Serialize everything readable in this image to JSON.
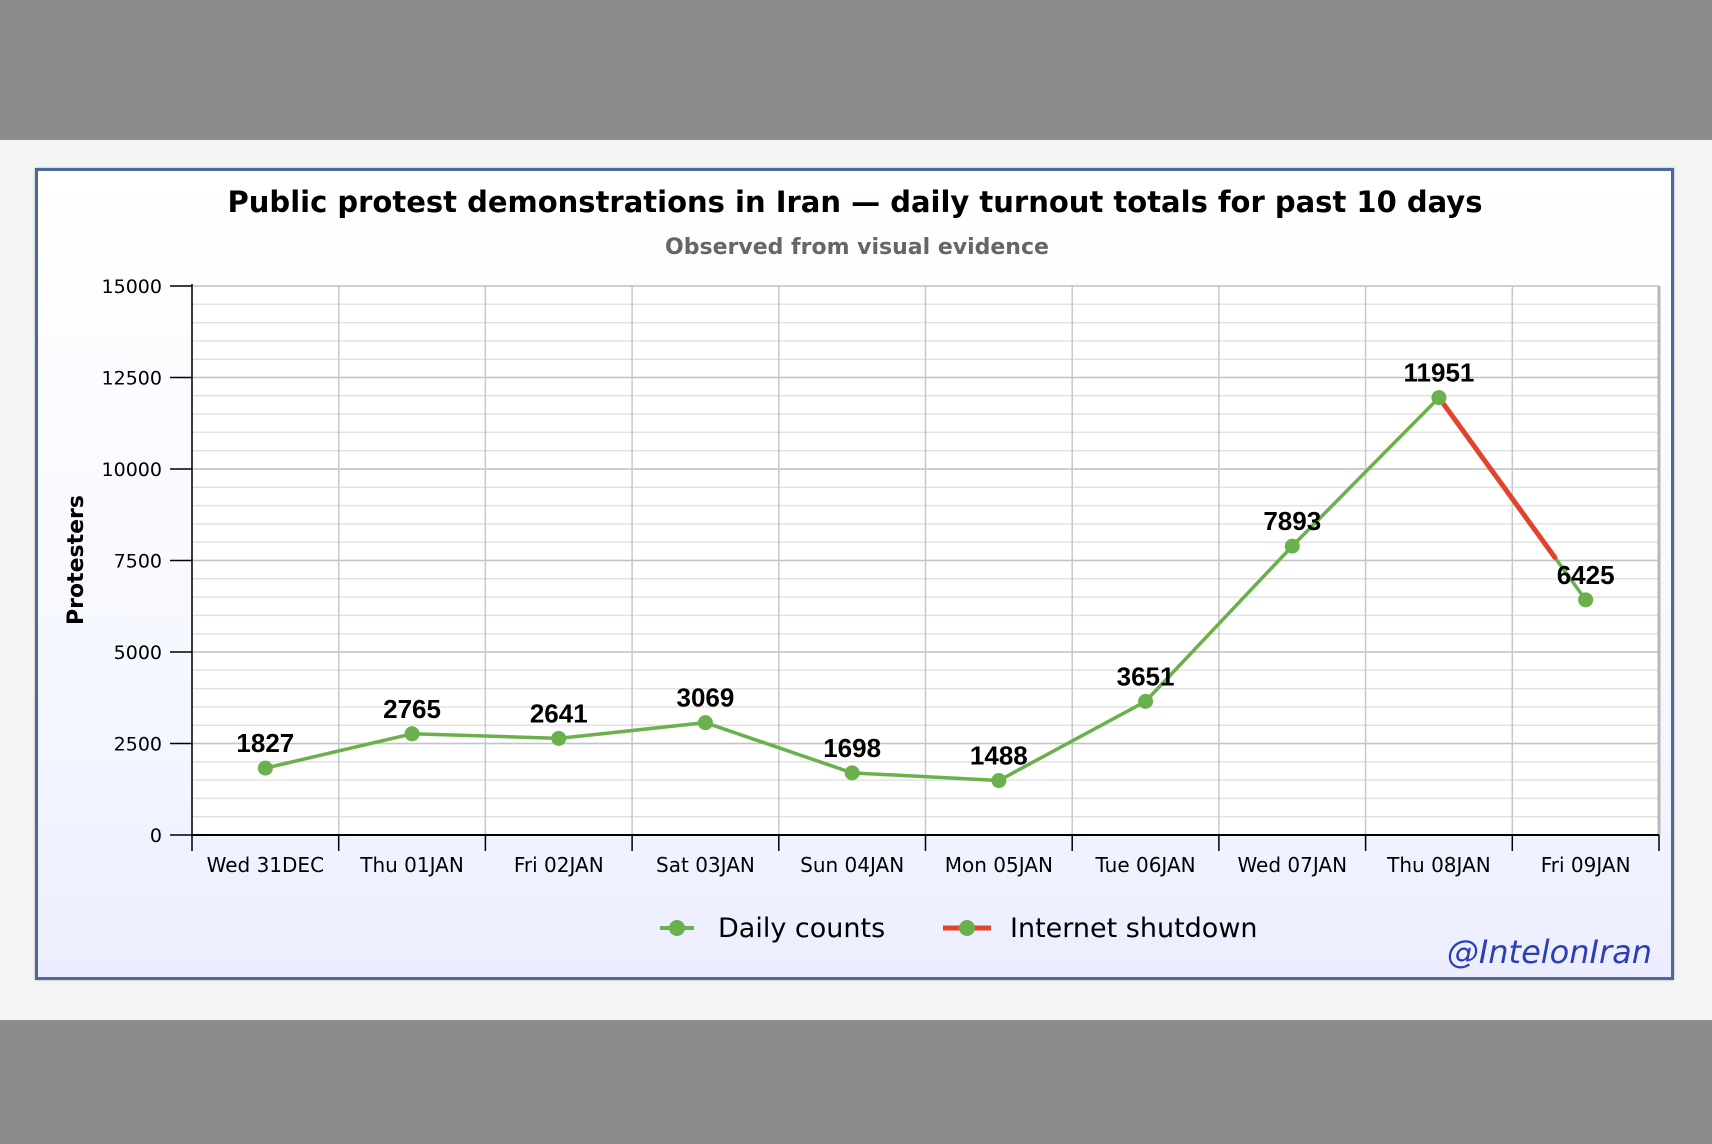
{
  "chart_data": {
    "type": "line",
    "title": "Public protest demonstrations in Iran — daily turnout totals for past 10 days",
    "subtitle": "Observed from visual evidence",
    "xlabel": "",
    "ylabel": "Protesters",
    "ylim": [
      0,
      15000
    ],
    "yticks": [
      0,
      2500,
      5000,
      7500,
      10000,
      12500,
      15000
    ],
    "grid": true,
    "categories": [
      "Wed 31DEC",
      "Thu 01JAN",
      "Fri 02JAN",
      "Sat 03JAN",
      "Sun 04JAN",
      "Mon 05JAN",
      "Tue 06JAN",
      "Wed 07JAN",
      "Thu 08JAN",
      "Fri 09JAN"
    ],
    "series": [
      {
        "name": "Daily counts",
        "color": "#6ab04c",
        "values": [
          1827,
          2765,
          2641,
          3069,
          1698,
          1488,
          3651,
          7893,
          11951,
          6425
        ]
      },
      {
        "name": "Internet shutdown",
        "color": "#e0452b",
        "from_category": "Thu 08JAN",
        "to_category": "Fri 09JAN"
      }
    ],
    "data_labels": [
      "1827",
      "2765",
      "2641",
      "3069",
      "1698",
      "1488",
      "3651",
      "7893",
      "11951",
      "6425"
    ],
    "legend_position": "bottom-center"
  },
  "watermark": "@IntelonIran"
}
